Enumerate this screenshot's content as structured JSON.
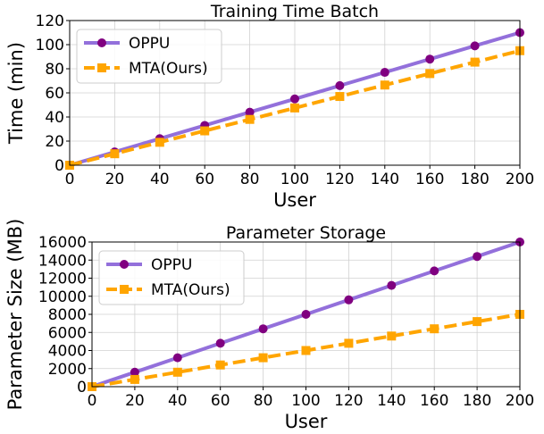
{
  "chart_data": [
    {
      "type": "line",
      "title": "Training Time Batch",
      "xlabel": "User",
      "ylabel": "Time (min)",
      "xlim": [
        0,
        200
      ],
      "ylim": [
        0,
        120
      ],
      "xticks": [
        0,
        20,
        40,
        60,
        80,
        100,
        120,
        140,
        160,
        180,
        200
      ],
      "yticks": [
        0,
        20,
        40,
        60,
        80,
        100,
        120
      ],
      "grid": true,
      "legend_position": "top-left",
      "series": [
        {
          "name": "OPPU",
          "color": "#9370DB",
          "marker_color": "#800080",
          "marker": "circle",
          "linestyle": "solid",
          "x": [
            0,
            20,
            40,
            60,
            80,
            100,
            120,
            140,
            160,
            180,
            200
          ],
          "values": [
            0,
            11,
            22,
            33,
            44,
            55,
            66,
            77,
            88,
            99,
            110
          ]
        },
        {
          "name": "MTA(Ours)",
          "color": "#FFA500",
          "marker_color": "#FFA500",
          "marker": "square",
          "linestyle": "dashed",
          "x": [
            0,
            20,
            40,
            60,
            80,
            100,
            120,
            140,
            160,
            180,
            200
          ],
          "values": [
            0,
            9.5,
            19,
            28.5,
            38,
            47.5,
            57,
            66.5,
            76,
            85.5,
            95
          ]
        }
      ]
    },
    {
      "type": "line",
      "title": "Parameter Storage",
      "xlabel": "User",
      "ylabel": "Parameter Size (MB)",
      "xlim": [
        0,
        200
      ],
      "ylim": [
        0,
        16000
      ],
      "xticks": [
        0,
        20,
        40,
        60,
        80,
        100,
        120,
        140,
        160,
        180,
        200
      ],
      "yticks": [
        0,
        2000,
        4000,
        6000,
        8000,
        10000,
        12000,
        14000,
        16000
      ],
      "grid": true,
      "legend_position": "top-left",
      "series": [
        {
          "name": "OPPU",
          "color": "#9370DB",
          "marker_color": "#800080",
          "marker": "circle",
          "linestyle": "solid",
          "x": [
            0,
            20,
            40,
            60,
            80,
            100,
            120,
            140,
            160,
            180,
            200
          ],
          "values": [
            0,
            1600,
            3200,
            4800,
            6400,
            8000,
            9600,
            11200,
            12800,
            14400,
            16000
          ]
        },
        {
          "name": "MTA(Ours)",
          "color": "#FFA500",
          "marker_color": "#FFA500",
          "marker": "square",
          "linestyle": "dashed",
          "x": [
            0,
            20,
            40,
            60,
            80,
            100,
            120,
            140,
            160,
            180,
            200
          ],
          "values": [
            0,
            800,
            1600,
            2400,
            3200,
            4000,
            4800,
            5600,
            6400,
            7200,
            8000
          ]
        }
      ]
    }
  ]
}
